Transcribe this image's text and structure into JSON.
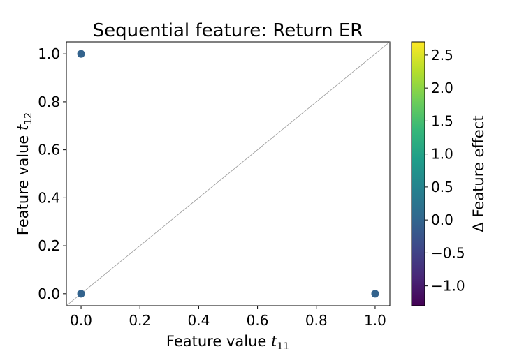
{
  "chart_data": {
    "type": "scatter",
    "title": "Sequential feature: Return ER",
    "xlabel": {
      "main": "Feature value ",
      "italic": "t",
      "sub": "11"
    },
    "ylabel": {
      "main": "Feature value ",
      "italic": "t",
      "sub": "12"
    },
    "xlim": [
      -0.05,
      1.05
    ],
    "ylim": [
      -0.05,
      1.05
    ],
    "xticks": [
      0.0,
      0.2,
      0.4,
      0.6,
      0.8,
      1.0
    ],
    "xtick_labels": [
      "0.0",
      "0.2",
      "0.4",
      "0.6",
      "0.8",
      "1.0"
    ],
    "yticks": [
      0.0,
      0.2,
      0.4,
      0.6,
      0.8,
      1.0
    ],
    "ytick_labels": [
      "0.0",
      "0.2",
      "0.4",
      "0.6",
      "0.8",
      "1.0"
    ],
    "reference_line": {
      "from": [
        -0.05,
        -0.05
      ],
      "to": [
        1.05,
        1.05
      ],
      "color": "#999999"
    },
    "points": [
      {
        "x": 0.0,
        "y": 1.0,
        "delta": 0.0
      },
      {
        "x": 0.0,
        "y": 0.0,
        "delta": 0.0
      },
      {
        "x": 1.0,
        "y": 0.0,
        "delta": 0.0
      }
    ],
    "point_color": "#33638d",
    "colorbar": {
      "label": "Δ Feature effect",
      "colormap": "viridis",
      "range": [
        -1.3,
        2.7
      ],
      "ticks": [
        -1.0,
        -0.5,
        0.0,
        0.5,
        1.0,
        1.5,
        2.0,
        2.5
      ],
      "tick_labels": [
        "−1.0",
        "−0.5",
        "0.0",
        "0.5",
        "1.0",
        "1.5",
        "2.0",
        "2.5"
      ],
      "stops": [
        "#440154",
        "#482878",
        "#3e4989",
        "#31688e",
        "#26828e",
        "#1f9e89",
        "#35b779",
        "#6ece58",
        "#b5de2b",
        "#fde725"
      ]
    },
    "grid": false
  }
}
